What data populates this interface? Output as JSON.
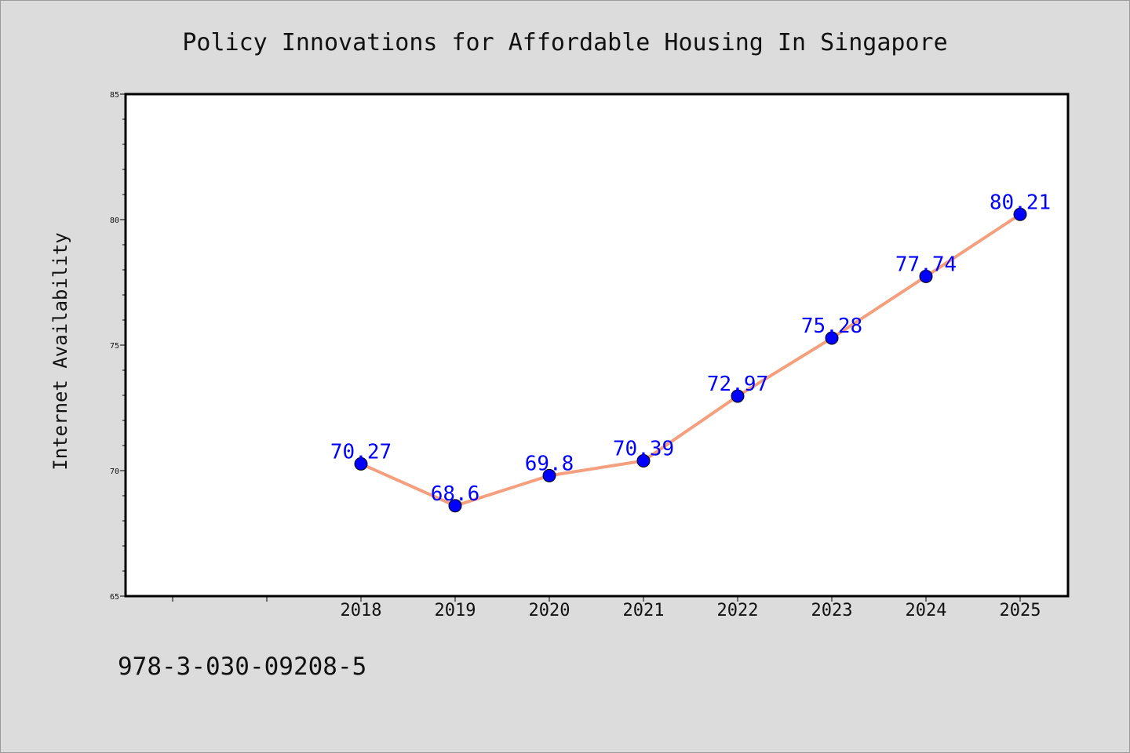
{
  "chart_data": {
    "type": "line",
    "title": "Policy Innovations for Affordable Housing In Singapore",
    "xlabel": "",
    "ylabel": "Internet Availability",
    "categories": [
      "2018",
      "2019",
      "2020",
      "2021",
      "2022",
      "2023",
      "2024",
      "2025"
    ],
    "series": [
      {
        "values": [
          70.27,
          68.6,
          69.8,
          70.39,
          72.97,
          75.28,
          77.74,
          80.21
        ],
        "data_labels": [
          "70.27",
          "68.6",
          "69.8",
          "70.39",
          "72.97",
          "75.28",
          "77.74",
          "80.21"
        ],
        "line_color": "#f4a07e",
        "marker_color": "#0000ff",
        "label_color": "#0000ff"
      }
    ],
    "ylim": [
      65,
      85
    ],
    "y_ticks": [
      "65",
      "70",
      "75",
      "80",
      "85"
    ],
    "grid": false,
    "legend": "none"
  },
  "footer": {
    "isbn": "978-3-030-09208-5"
  },
  "colors": {
    "background": "#dcdcdc",
    "plot_area": "#ffffff",
    "axis": "#000000"
  }
}
